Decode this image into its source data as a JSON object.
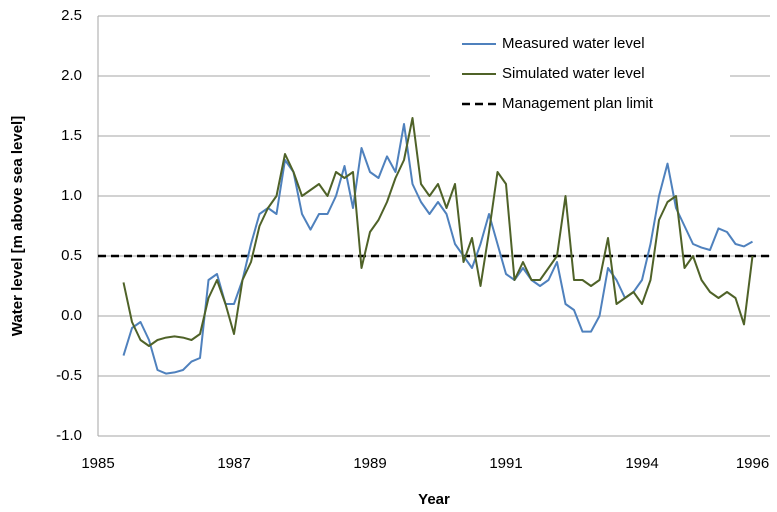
{
  "chart_data": {
    "type": "line",
    "x_label": "Year",
    "y_label": "Water level [m above sea level]",
    "categories": [
      "1985",
      null,
      null,
      null,
      null,
      null,
      null,
      null,
      null,
      null,
      null,
      null,
      null,
      null,
      null,
      null,
      "1987",
      null,
      null,
      null,
      null,
      null,
      null,
      null,
      null,
      null,
      null,
      null,
      null,
      null,
      null,
      null,
      "1989",
      null,
      null,
      null,
      null,
      null,
      null,
      null,
      null,
      null,
      null,
      null,
      null,
      null,
      null,
      null,
      "1991",
      null,
      null,
      null,
      null,
      null,
      null,
      null,
      null,
      null,
      null,
      null,
      null,
      null,
      null,
      null,
      "1994",
      null,
      null,
      null,
      null,
      null,
      null,
      null,
      null,
      null,
      null,
      null,
      null,
      "1996",
      null
    ],
    "series": [
      {
        "name": "Measured water level",
        "color": "#4f81bd",
        "values": [
          null,
          null,
          null,
          -0.33,
          -0.1,
          -0.05,
          -0.2,
          -0.45,
          -0.48,
          -0.47,
          -0.45,
          -0.38,
          -0.35,
          0.3,
          0.35,
          0.1,
          0.1,
          0.3,
          0.6,
          0.85,
          0.9,
          0.85,
          1.3,
          1.2,
          0.85,
          0.72,
          0.85,
          0.85,
          1.0,
          1.25,
          0.9,
          1.4,
          1.2,
          1.15,
          1.33,
          1.2,
          1.6,
          1.1,
          0.95,
          0.85,
          0.95,
          0.85,
          0.6,
          0.5,
          0.4,
          0.6,
          0.85,
          0.6,
          0.35,
          0.3,
          0.4,
          0.3,
          0.25,
          0.3,
          0.45,
          0.1,
          0.05,
          -0.13,
          -0.13,
          0.0,
          0.4,
          0.3,
          0.15,
          0.2,
          0.3,
          0.6,
          1.0,
          1.27,
          0.9,
          0.75,
          0.6,
          0.57,
          0.55,
          0.73,
          0.7,
          0.6,
          0.58,
          0.62,
          null
        ]
      },
      {
        "name": "Simulated water level",
        "color": "#4f6228",
        "values": [
          null,
          null,
          null,
          0.28,
          -0.05,
          -0.2,
          -0.25,
          -0.2,
          -0.18,
          -0.17,
          -0.18,
          -0.2,
          -0.15,
          0.15,
          0.3,
          0.1,
          -0.15,
          0.3,
          0.45,
          0.75,
          0.9,
          1.0,
          1.35,
          1.2,
          1.0,
          1.05,
          1.1,
          1.0,
          1.2,
          1.15,
          1.2,
          0.4,
          0.7,
          0.8,
          0.95,
          1.15,
          1.3,
          1.65,
          1.1,
          1.0,
          1.1,
          0.9,
          1.1,
          0.45,
          0.65,
          0.25,
          0.7,
          1.2,
          1.1,
          0.3,
          0.45,
          0.3,
          0.3,
          0.4,
          0.5,
          1.0,
          0.3,
          0.3,
          0.25,
          0.3,
          0.65,
          0.1,
          0.15,
          0.2,
          0.1,
          0.3,
          0.8,
          0.95,
          1.0,
          0.4,
          0.5,
          0.3,
          0.2,
          0.15,
          0.2,
          0.15,
          -0.07,
          0.5,
          null
        ]
      }
    ],
    "reference_line": {
      "name": "Management plan limit",
      "value": 0.5,
      "color": "#000000"
    },
    "ylim": [
      -1.0,
      2.5
    ],
    "yticks": [
      {
        "value": -1.0,
        "label": "-1.0"
      },
      -0.5,
      {
        "value": 0.0,
        "label": "0.0"
      },
      0.5,
      {
        "value": 1.0,
        "label": "1.0"
      },
      1.5,
      {
        "value": 2.0,
        "label": "2.0"
      },
      2.5
    ],
    "grid": true,
    "legend": "top-right"
  }
}
